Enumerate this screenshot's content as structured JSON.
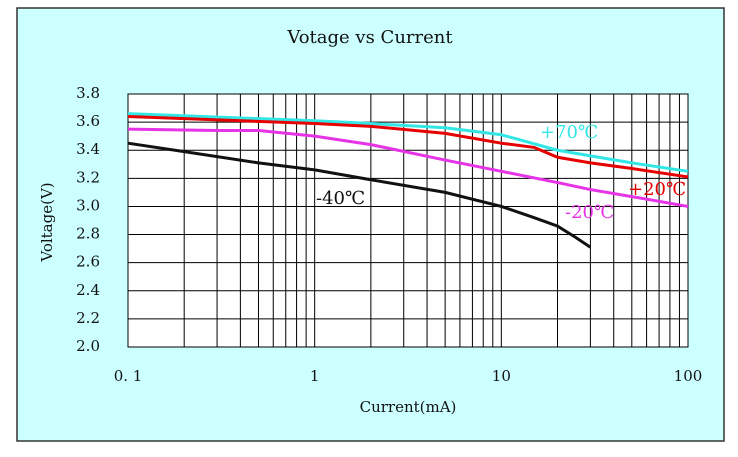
{
  "chart_data": {
    "type": "line",
    "title": "Votage vs Current",
    "x_label": "Current(mA)",
    "y_label": "Voltage(V)",
    "x_log": true,
    "grid": true,
    "xlim": [
      0.1,
      100
    ],
    "xticks": [
      {
        "value": 0.1,
        "label": "0. 1"
      },
      1,
      10,
      100
    ],
    "x_minor_ticks": [
      0.2,
      0.3,
      0.4,
      0.5,
      0.6,
      0.7,
      0.8,
      0.9,
      2,
      3,
      4,
      5,
      6,
      7,
      8,
      9,
      20,
      30,
      40,
      50,
      60,
      70,
      80,
      90
    ],
    "ylim": [
      2.0,
      3.8
    ],
    "yticks": [
      {
        "value": 2.0,
        "label": "2.0"
      },
      2.2,
      2.4,
      2.6,
      2.8,
      {
        "value": 3.0,
        "label": "3.0"
      },
      3.2,
      3.4,
      3.6,
      3.8
    ],
    "series": [
      {
        "name": "+70℃",
        "color": "#33e6e6",
        "x": [
          0.1,
          1,
          2,
          5,
          10,
          20,
          50,
          100
        ],
        "values": [
          3.66,
          3.61,
          3.59,
          3.56,
          3.51,
          3.4,
          3.31,
          3.25
        ]
      },
      {
        "name": "+20℃",
        "color": "#e60000",
        "x": [
          0.1,
          1,
          2,
          5,
          10,
          15,
          20,
          30,
          50,
          100
        ],
        "values": [
          3.64,
          3.59,
          3.57,
          3.52,
          3.45,
          3.42,
          3.35,
          3.31,
          3.27,
          3.21
        ]
      },
      {
        "name": "-20℃",
        "color": "#e633e6",
        "x": [
          0.1,
          0.3,
          0.5,
          1,
          2,
          5,
          10,
          20,
          30,
          50,
          100
        ],
        "values": [
          3.55,
          3.54,
          3.54,
          3.5,
          3.44,
          3.33,
          3.25,
          3.17,
          3.12,
          3.07,
          3.0
        ]
      },
      {
        "name": "-40℃",
        "color": "#111111",
        "x": [
          0.1,
          0.2,
          0.5,
          1,
          2,
          5,
          10,
          15,
          20,
          25,
          30
        ],
        "values": [
          3.45,
          3.39,
          3.31,
          3.26,
          3.19,
          3.1,
          3.0,
          2.92,
          2.86,
          2.78,
          2.71
        ]
      }
    ]
  }
}
